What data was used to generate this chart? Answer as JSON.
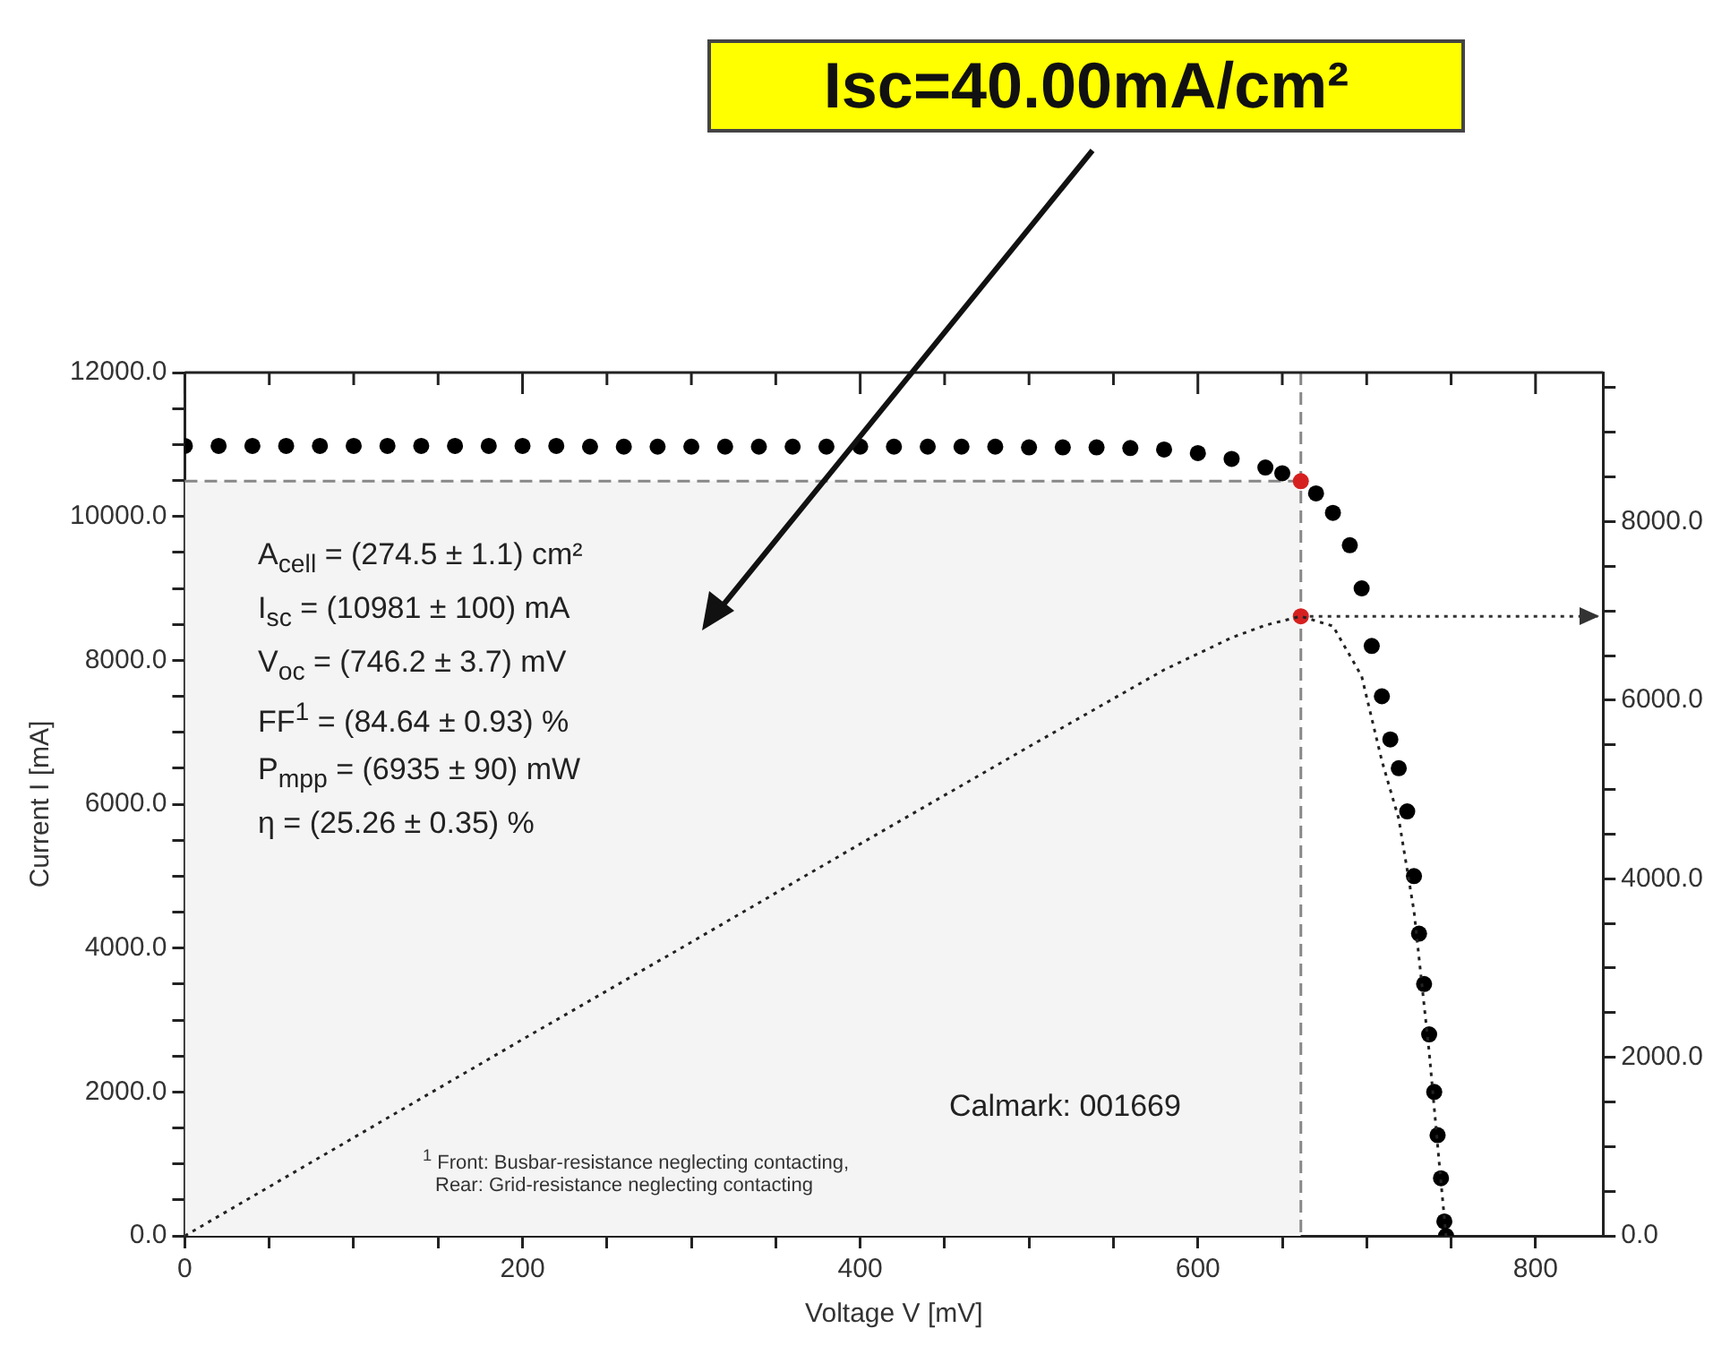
{
  "chart_data": {
    "type": "scatter",
    "xlabel": "Voltage V [mV]",
    "ylabel": "Current I [mA]",
    "xlim": [
      0,
      840
    ],
    "ylim": [
      0,
      12000
    ],
    "y2lim": [
      0,
      9670
    ],
    "xticks": [
      0,
      {
        "value": 50,
        "label": null
      },
      {
        "value": 100,
        "label": null
      },
      {
        "value": 150,
        "label": null
      },
      200,
      {
        "value": 250,
        "label": null
      },
      {
        "value": 300,
        "label": null
      },
      {
        "value": 350,
        "label": null
      },
      400,
      {
        "value": 450,
        "label": null
      },
      {
        "value": 500,
        "label": null
      },
      {
        "value": 550,
        "label": null
      },
      600,
      {
        "value": 650,
        "label": null
      },
      {
        "value": 700,
        "label": null
      },
      {
        "value": 750,
        "label": null
      },
      800
    ],
    "yticks": [
      {
        "value": 0,
        "label": "0.0"
      },
      {
        "value": 500,
        "label": null
      },
      {
        "value": 1000,
        "label": null
      },
      {
        "value": 1500,
        "label": null
      },
      {
        "value": 2000,
        "label": "2000.0"
      },
      {
        "value": 2500,
        "label": null
      },
      {
        "value": 3000,
        "label": null
      },
      {
        "value": 3500,
        "label": null
      },
      {
        "value": 4000,
        "label": "4000.0"
      },
      {
        "value": 4500,
        "label": null
      },
      {
        "value": 5000,
        "label": null
      },
      {
        "value": 5500,
        "label": null
      },
      {
        "value": 6000,
        "label": "6000.0"
      },
      {
        "value": 6500,
        "label": null
      },
      {
        "value": 7000,
        "label": null
      },
      {
        "value": 7500,
        "label": null
      },
      {
        "value": 8000,
        "label": "8000.0"
      },
      {
        "value": 8500,
        "label": null
      },
      {
        "value": 9000,
        "label": null
      },
      {
        "value": 9500,
        "label": null
      },
      {
        "value": 10000,
        "label": "10000.0"
      },
      {
        "value": 10500,
        "label": null
      },
      {
        "value": 11000,
        "label": null
      },
      {
        "value": 11500,
        "label": null
      },
      {
        "value": 12000,
        "label": "12000.0"
      }
    ],
    "y2ticks": [
      {
        "value": 0,
        "label": "0.0"
      },
      {
        "value": 500,
        "label": null
      },
      {
        "value": 1000,
        "label": null
      },
      {
        "value": 1500,
        "label": null
      },
      {
        "value": 2000,
        "label": "2000.0"
      },
      {
        "value": 2500,
        "label": null
      },
      {
        "value": 3000,
        "label": null
      },
      {
        "value": 3500,
        "label": null
      },
      {
        "value": 4000,
        "label": "4000.0"
      },
      {
        "value": 4500,
        "label": null
      },
      {
        "value": 5000,
        "label": null
      },
      {
        "value": 5500,
        "label": null
      },
      {
        "value": 6000,
        "label": "6000.0"
      },
      {
        "value": 6500,
        "label": null
      },
      {
        "value": 7000,
        "label": null
      },
      {
        "value": 7500,
        "label": null
      },
      {
        "value": 8000,
        "label": "8000.0"
      },
      {
        "value": 8500,
        "label": null
      },
      {
        "value": 9000,
        "label": null
      },
      {
        "value": 9500,
        "label": null
      }
    ],
    "grid": false,
    "legend": false,
    "series": [
      {
        "type": "area",
        "marker": "none",
        "color": "#f4f4f4",
        "x": [
          0,
          661
        ],
        "values": [
          10490,
          10490
        ]
      },
      {
        "type": "scatter",
        "marker": "circle",
        "color": "#000000",
        "x": [
          0,
          20,
          40,
          60,
          80,
          100,
          120,
          140,
          160,
          180,
          200,
          220,
          240,
          260,
          280,
          300,
          320,
          340,
          360,
          380,
          400,
          420,
          440,
          460,
          480,
          500,
          520,
          540,
          560,
          580,
          600,
          620,
          640,
          650,
          661,
          670,
          680,
          690,
          697,
          703,
          709,
          714,
          719,
          724,
          728,
          731,
          734,
          737,
          740,
          742,
          744,
          746,
          747
        ],
        "values": [
          10980,
          10980,
          10980,
          10980,
          10980,
          10980,
          10980,
          10980,
          10980,
          10980,
          10980,
          10980,
          10970,
          10970,
          10970,
          10970,
          10970,
          10970,
          10970,
          10970,
          10970,
          10970,
          10970,
          10970,
          10970,
          10960,
          10960,
          10960,
          10950,
          10930,
          10880,
          10800,
          10680,
          10600,
          null,
          10320,
          10050,
          9600,
          9000,
          8200,
          7500,
          6900,
          6500,
          5900,
          5000,
          4200,
          3500,
          2800,
          2000,
          1400,
          800,
          200,
          0
        ]
      },
      {
        "type": "line",
        "axis": "y2",
        "marker": "none",
        "line_style": "dotted",
        "color": "#222222",
        "x": [
          0,
          100,
          200,
          300,
          400,
          500,
          580,
          620,
          640,
          661,
          680,
          697,
          709,
          719,
          728,
          737,
          744,
          747
        ],
        "values": [
          0,
          1100,
          2200,
          3290,
          4390,
          5480,
          6340,
          6700,
          6840,
          6940,
          6830,
          6270,
          5320,
          4670,
          3640,
          2060,
          600,
          0
        ]
      },
      {
        "type": "scatter",
        "marker": "circle",
        "color": "#d62020",
        "x": [
          661
        ],
        "values": [
          10490
        ]
      },
      {
        "type": "scatter",
        "axis": "y2",
        "marker": "circle",
        "color": "#d62020",
        "x": [
          661
        ],
        "values": [
          6940
        ]
      }
    ],
    "ref_lines": [
      {
        "axis": "x",
        "value": 661,
        "color": "#888888",
        "line_style": "dashed"
      },
      {
        "axis": "y",
        "value": 10490,
        "color": "#888888",
        "line_style": "dashed"
      },
      {
        "axis": "y2",
        "value": 6940,
        "color": "#333333",
        "line_style": "dotted"
      }
    ],
    "annotations": [
      "Isc=40.00mA/cm²",
      "A$_{cell}$ = (274.5 ± 1.1) cm²",
      "I$_{sc}$ = (10981 ± 100) mA",
      "V$_{oc}$ = (746.2 ± 3.7) mV",
      "FF$^{1}$ = (84.64 ± 0.93) %",
      "P$_{mpp}$ = (6935 ± 90) mW",
      "η = (25.26 ± 0.35) %",
      "$^{1}$ Front: Busbar-resistance neglecting contacting,",
      "Rear: Grid-resistance neglecting contacting",
      "Calmark: 001669"
    ]
  }
}
